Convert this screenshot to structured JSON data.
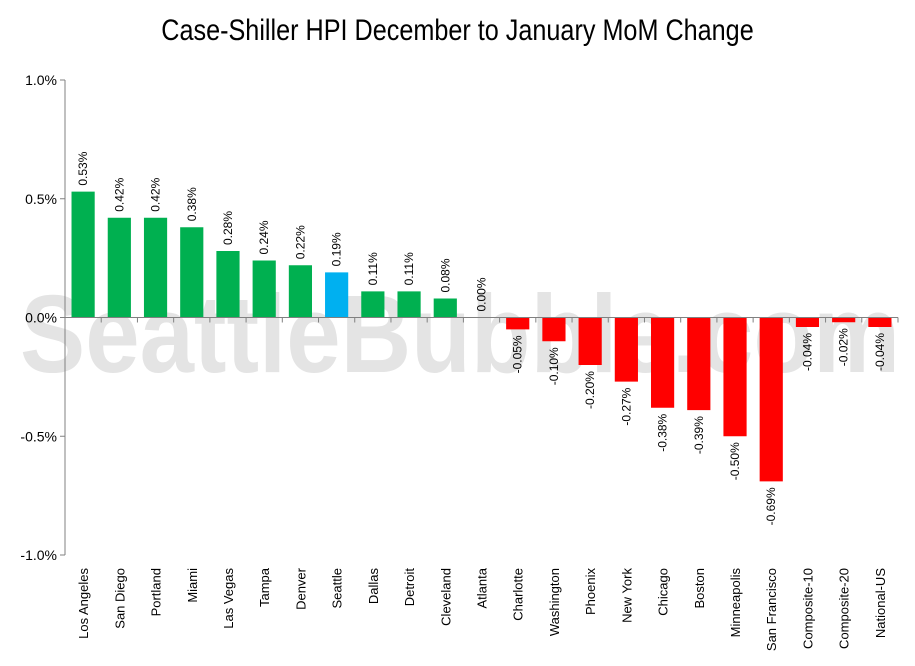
{
  "chart_data": {
    "type": "bar",
    "title": "Case-Shiller HPI December to January MoM Change",
    "watermark": "SeattleBubble.com",
    "categories": [
      "Los Angeles",
      "San Diego",
      "Portland",
      "Miami",
      "Las Vegas",
      "Tampa",
      "Denver",
      "Seattle",
      "Dallas",
      "Detroit",
      "Cleveland",
      "Atlanta",
      "Charlotte",
      "Washington",
      "Phoenix",
      "New York",
      "Chicago",
      "Boston",
      "Minneapolis",
      "San Francisco",
      "Composite-10",
      "Composite-20",
      "National-US"
    ],
    "values": [
      0.53,
      0.42,
      0.42,
      0.38,
      0.28,
      0.24,
      0.22,
      0.19,
      0.11,
      0.11,
      0.08,
      0.0,
      -0.05,
      -0.1,
      -0.2,
      -0.27,
      -0.38,
      -0.39,
      -0.5,
      -0.69,
      -0.04,
      -0.02,
      -0.04
    ],
    "labels": [
      "0.53%",
      "0.42%",
      "0.42%",
      "0.38%",
      "0.28%",
      "0.24%",
      "0.22%",
      "0.19%",
      "0.11%",
      "0.11%",
      "0.08%",
      "0.00%",
      "-0.05%",
      "-0.10%",
      "-0.20%",
      "-0.27%",
      "-0.38%",
      "-0.39%",
      "-0.50%",
      "-0.69%",
      "-0.04%",
      "-0.02%",
      "-0.04%"
    ],
    "yticks": [
      1.0,
      0.5,
      0.0,
      -0.5,
      -1.0
    ],
    "ytick_labels": [
      "1.0%",
      "0.5%",
      "0.0%",
      "-0.5%",
      "-1.0%"
    ],
    "ylim": [
      -1.0,
      1.0
    ],
    "xlabel": "",
    "ylabel": "",
    "grid": false,
    "colors": {
      "positive": "#00b050",
      "negative": "#ff0000",
      "highlight": "#00b0f0",
      "highlight_category": "Seattle"
    }
  }
}
